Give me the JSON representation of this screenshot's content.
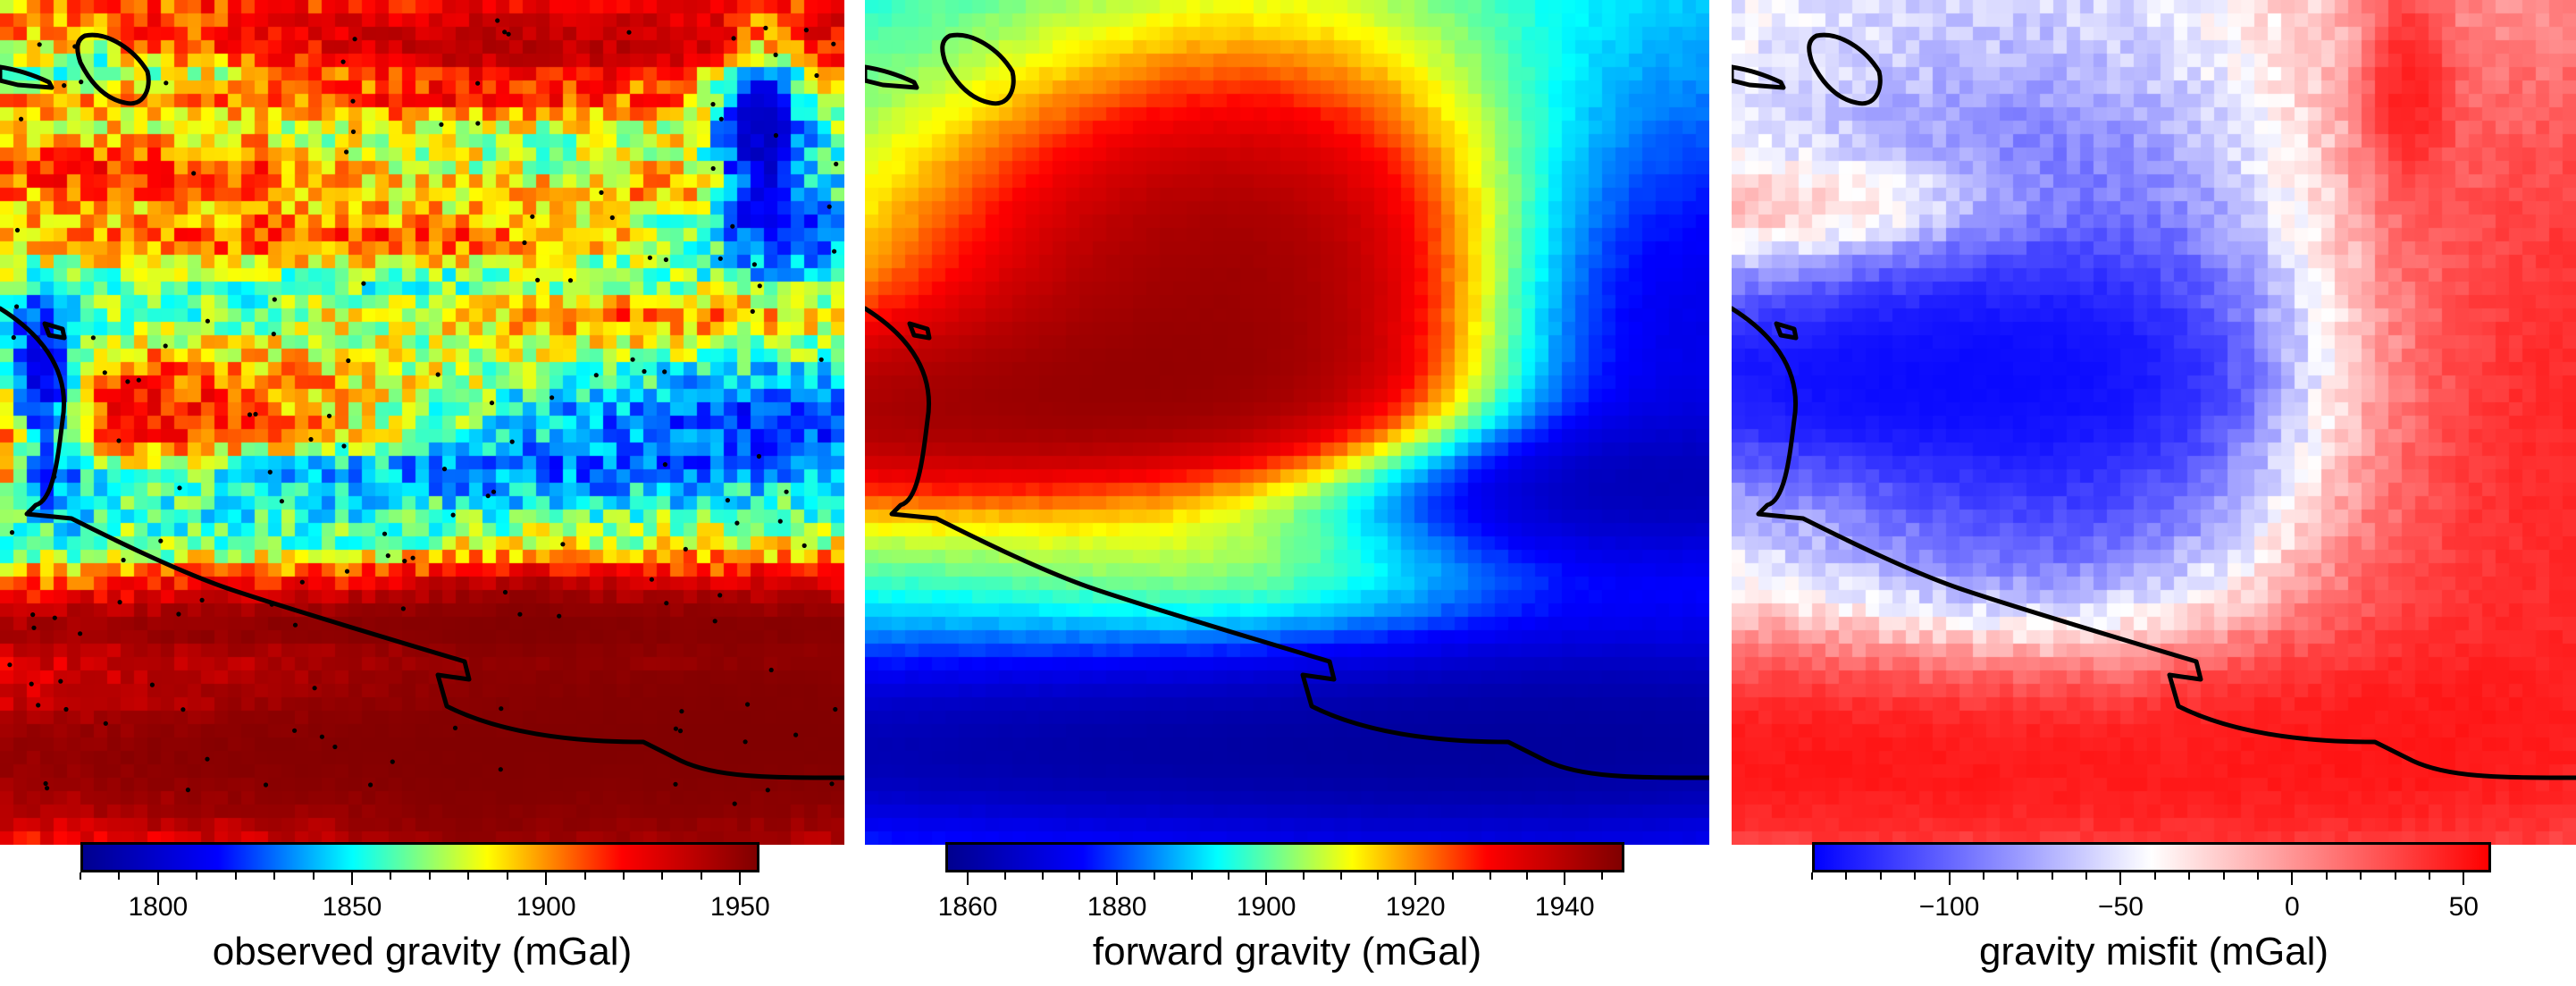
{
  "panels": [
    {
      "id": "observed",
      "title": "observed gravity (mGal)",
      "colormap": "jet",
      "range": [
        1780,
        1955
      ],
      "ticks": [
        "1800",
        "1850",
        "1900",
        "1950"
      ],
      "tick_values": [
        1800,
        1850,
        1900,
        1950
      ],
      "minor_step": 10,
      "show_stations": true
    },
    {
      "id": "forward",
      "title": "forward gravity (mGal)",
      "colormap": "jet",
      "range": [
        1857,
        1948
      ],
      "ticks": [
        "1860",
        "1880",
        "1900",
        "1920",
        "1940"
      ],
      "tick_values": [
        1860,
        1880,
        1900,
        1920,
        1940
      ],
      "minor_step": 5,
      "show_stations": false
    },
    {
      "id": "misfit",
      "title": "gravity misfit (mGal)",
      "colormap": "bwr",
      "range": [
        -140,
        58
      ],
      "ticks": [
        "−100",
        "−50",
        "0",
        "50"
      ],
      "tick_values": [
        -100,
        -50,
        0,
        50
      ],
      "minor_step": 10,
      "show_stations": false
    }
  ],
  "colors": {
    "coastline": "#000000",
    "stations": "#000000",
    "jet": [
      "#00008f",
      "#0000ff",
      "#00ffff",
      "#ffff00",
      "#ff0000",
      "#800000"
    ],
    "bwr": [
      "#0000ff",
      "#ffffff",
      "#ff0000"
    ]
  }
}
